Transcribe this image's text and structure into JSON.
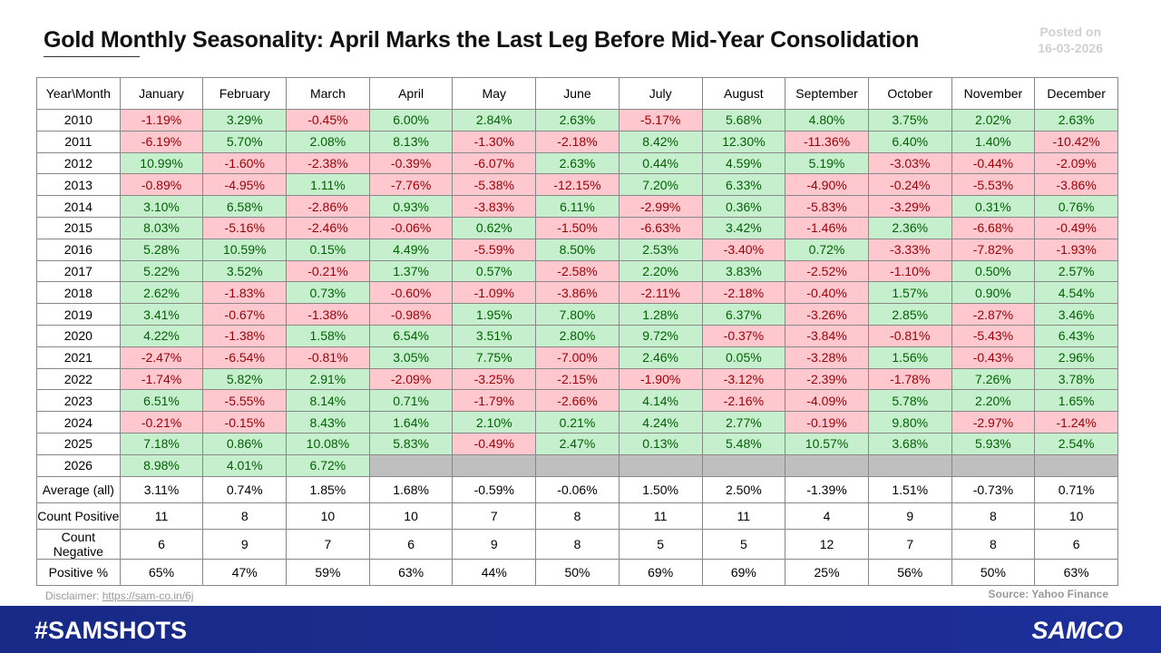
{
  "header": {
    "title": "Gold Monthly Seasonality: April Marks the Last Leg Before Mid-Year Consolidation",
    "posted_label": "Posted on",
    "posted_date": "16-03-2026"
  },
  "table": {
    "columns": [
      "Year\\Month",
      "January",
      "February",
      "March",
      "April",
      "May",
      "June",
      "July",
      "August",
      "September",
      "October",
      "November",
      "December"
    ],
    "rows": [
      {
        "year": "2010",
        "values": [
          "-1.19%",
          "3.29%",
          "-0.45%",
          "6.00%",
          "2.84%",
          "2.63%",
          "-5.17%",
          "5.68%",
          "4.80%",
          "3.75%",
          "2.02%",
          "2.63%"
        ]
      },
      {
        "year": "2011",
        "values": [
          "-6.19%",
          "5.70%",
          "2.08%",
          "8.13%",
          "-1.30%",
          "-2.18%",
          "8.42%",
          "12.30%",
          "-11.36%",
          "6.40%",
          "1.40%",
          "-10.42%"
        ]
      },
      {
        "year": "2012",
        "values": [
          "10.99%",
          "-1.60%",
          "-2.38%",
          "-0.39%",
          "-6.07%",
          "2.63%",
          "0.44%",
          "4.59%",
          "5.19%",
          "-3.03%",
          "-0.44%",
          "-2.09%"
        ]
      },
      {
        "year": "2013",
        "values": [
          "-0.89%",
          "-4.95%",
          "1.11%",
          "-7.76%",
          "-5.38%",
          "-12.15%",
          "7.20%",
          "6.33%",
          "-4.90%",
          "-0.24%",
          "-5.53%",
          "-3.86%"
        ]
      },
      {
        "year": "2014",
        "values": [
          "3.10%",
          "6.58%",
          "-2.86%",
          "0.93%",
          "-3.83%",
          "6.11%",
          "-2.99%",
          "0.36%",
          "-5.83%",
          "-3.29%",
          "0.31%",
          "0.76%"
        ]
      },
      {
        "year": "2015",
        "values": [
          "8.03%",
          "-5.16%",
          "-2.46%",
          "-0.06%",
          "0.62%",
          "-1.50%",
          "-6.63%",
          "3.42%",
          "-1.46%",
          "2.36%",
          "-6.68%",
          "-0.49%"
        ]
      },
      {
        "year": "2016",
        "values": [
          "5.28%",
          "10.59%",
          "0.15%",
          "4.49%",
          "-5.59%",
          "8.50%",
          "2.53%",
          "-3.40%",
          "0.72%",
          "-3.33%",
          "-7.82%",
          "-1.93%"
        ]
      },
      {
        "year": "2017",
        "values": [
          "5.22%",
          "3.52%",
          "-0.21%",
          "1.37%",
          "0.57%",
          "-2.58%",
          "2.20%",
          "3.83%",
          "-2.52%",
          "-1.10%",
          "0.50%",
          "2.57%"
        ]
      },
      {
        "year": "2018",
        "values": [
          "2.62%",
          "-1.83%",
          "0.73%",
          "-0.60%",
          "-1.09%",
          "-3.86%",
          "-2.11%",
          "-2.18%",
          "-0.40%",
          "1.57%",
          "0.90%",
          "4.54%"
        ]
      },
      {
        "year": "2019",
        "values": [
          "3.41%",
          "-0.67%",
          "-1.38%",
          "-0.98%",
          "1.95%",
          "7.80%",
          "1.28%",
          "6.37%",
          "-3.26%",
          "2.85%",
          "-2.87%",
          "3.46%"
        ]
      },
      {
        "year": "2020",
        "values": [
          "4.22%",
          "-1.38%",
          "1.58%",
          "6.54%",
          "3.51%",
          "2.80%",
          "9.72%",
          "-0.37%",
          "-3.84%",
          "-0.81%",
          "-5.43%",
          "6.43%"
        ]
      },
      {
        "year": "2021",
        "values": [
          "-2.47%",
          "-6.54%",
          "-0.81%",
          "3.05%",
          "7.75%",
          "-7.00%",
          "2.46%",
          "0.05%",
          "-3.28%",
          "1.56%",
          "-0.43%",
          "2.96%"
        ]
      },
      {
        "year": "2022",
        "values": [
          "-1.74%",
          "5.82%",
          "2.91%",
          "-2.09%",
          "-3.25%",
          "-2.15%",
          "-1.90%",
          "-3.12%",
          "-2.39%",
          "-1.78%",
          "7.26%",
          "3.78%"
        ]
      },
      {
        "year": "2023",
        "values": [
          "6.51%",
          "-5.55%",
          "8.14%",
          "0.71%",
          "-1.79%",
          "-2.66%",
          "4.14%",
          "-2.16%",
          "-4.09%",
          "5.78%",
          "2.20%",
          "1.65%"
        ]
      },
      {
        "year": "2024",
        "values": [
          "-0.21%",
          "-0.15%",
          "8.43%",
          "1.64%",
          "2.10%",
          "0.21%",
          "4.24%",
          "2.77%",
          "-0.19%",
          "9.80%",
          "-2.97%",
          "-1.24%"
        ]
      },
      {
        "year": "2025",
        "values": [
          "7.18%",
          "0.86%",
          "10.08%",
          "5.83%",
          "-0.49%",
          "2.47%",
          "0.13%",
          "5.48%",
          "10.57%",
          "3.68%",
          "5.93%",
          "2.54%"
        ]
      },
      {
        "year": "2026",
        "values": [
          "8.98%",
          "4.01%",
          "6.72%",
          null,
          null,
          null,
          null,
          null,
          null,
          null,
          null,
          null
        ]
      }
    ],
    "summary": [
      {
        "label": "Average (all)",
        "values": [
          "3.11%",
          "0.74%",
          "1.85%",
          "1.68%",
          "-0.59%",
          "-0.06%",
          "1.50%",
          "2.50%",
          "-1.39%",
          "1.51%",
          "-0.73%",
          "0.71%"
        ]
      },
      {
        "label": "Count Positive",
        "values": [
          "11",
          "8",
          "10",
          "10",
          "7",
          "8",
          "11",
          "11",
          "4",
          "9",
          "8",
          "10"
        ]
      },
      {
        "label": "Count Negative",
        "values": [
          "6",
          "9",
          "7",
          "6",
          "9",
          "8",
          "5",
          "5",
          "12",
          "7",
          "8",
          "6"
        ]
      },
      {
        "label": "Positive %",
        "values": [
          "65%",
          "47%",
          "59%",
          "63%",
          "44%",
          "50%",
          "69%",
          "69%",
          "25%",
          "56%",
          "50%",
          "63%"
        ]
      }
    ]
  },
  "footer": {
    "disclaimer_label": "Disclaimer:",
    "disclaimer_link": "https://sam-co.in/6j",
    "source": "Source: Yahoo Finance",
    "hashtag": "#SAMSHOTS",
    "brand": "SAMCO"
  }
}
